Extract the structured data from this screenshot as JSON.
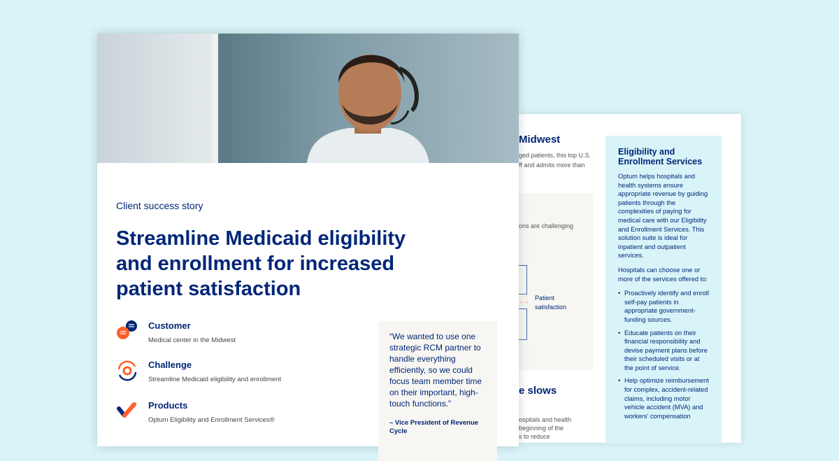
{
  "back_page": {
    "heading_1": "Midwest",
    "text_1": [
      "ged patients, this top U.S.",
      "ff and admits more than"
    ],
    "box_text": "ons are challenging",
    "diagram_label": "Patient satisfaction",
    "heading_2": "e slows",
    "text_2": [
      "ospitals and health",
      "beginning of the",
      "s to reduce"
    ],
    "sidebar": {
      "title": "Eligibility and Enrollment Services",
      "para_1": "Optum helps hospitals and health systems ensure appropriate revenue by guiding patients through the complexities of paying for medical care with our Eligibility and Enrollment Services. This solution suite is ideal for inpatient and outpatient services.",
      "para_2": "Hospitals can choose one or more of the services offered to:",
      "bullets": [
        "Proactively identify and enroll self-pay patients in appropriate government-funding sources.",
        "Educate patients on their financial responsibility and devise payment plans before their scheduled visits or at the point of service.",
        "Help optimize reimbursement for complex, accident-related claims, including motor vehicle accident (MVA) and workers’ compensation"
      ]
    }
  },
  "front_page": {
    "kicker": "Client success story",
    "title": "Streamline Medicaid eligibility and enrollment for increased patient satisfaction",
    "items": [
      {
        "label": "Customer",
        "value": "Medical center in the Midwest",
        "icon": "chat-bubbles-icon"
      },
      {
        "label": "Challenge",
        "value": "Streamline Medicaid eligibility and enrollment",
        "icon": "gear-cycle-icon"
      },
      {
        "label": "Products",
        "value": "Optum Eligibility and Enrollment Services®",
        "icon": "checkmark-icon"
      }
    ],
    "quote": "“We wanted to use one strategic RCM partner to handle everything efficiently, so we could focus team member time on their important, high-touch functions.”",
    "quote_by": "– Vice President of Revenue Cycle"
  },
  "colors": {
    "background": "#d9f4f9",
    "navy": "#002677",
    "orange": "#ff612b",
    "beige": "#f7f6f2"
  }
}
